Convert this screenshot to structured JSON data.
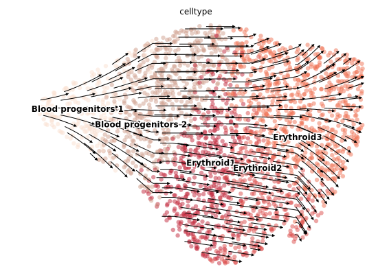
{
  "chart_data": {
    "type": "scatter",
    "title": "celltype",
    "subtitle": "",
    "xlabel": "",
    "ylabel": "",
    "axes_visible": false,
    "grid": false,
    "legend": "on data",
    "overlay": "velocity streamlines with arrowheads (black)",
    "xlim": [
      0,
      100
    ],
    "ylim": [
      0,
      100
    ],
    "categories": [
      "Blood progenitors 1",
      "Blood progenitors 2",
      "Erythroid1",
      "Erythroid2",
      "Erythroid3"
    ],
    "colors": {
      "Blood progenitors 1": "#f9dfcf",
      "Blood progenitors 2": "#cfa08e",
      "Erythroid1": "#c1273b",
      "Erythroid2": "#dc4b4a",
      "Erythroid3": "#f07153"
    },
    "cluster_centers": [
      {
        "name": "Blood progenitors 1",
        "x": 14,
        "y": 63
      },
      {
        "name": "Blood progenitors 2",
        "x": 33,
        "y": 57
      },
      {
        "name": "Erythroid1",
        "x": 54,
        "y": 42
      },
      {
        "name": "Erythroid2",
        "x": 68,
        "y": 40
      },
      {
        "name": "Erythroid3",
        "x": 80,
        "y": 52
      }
    ]
  }
}
